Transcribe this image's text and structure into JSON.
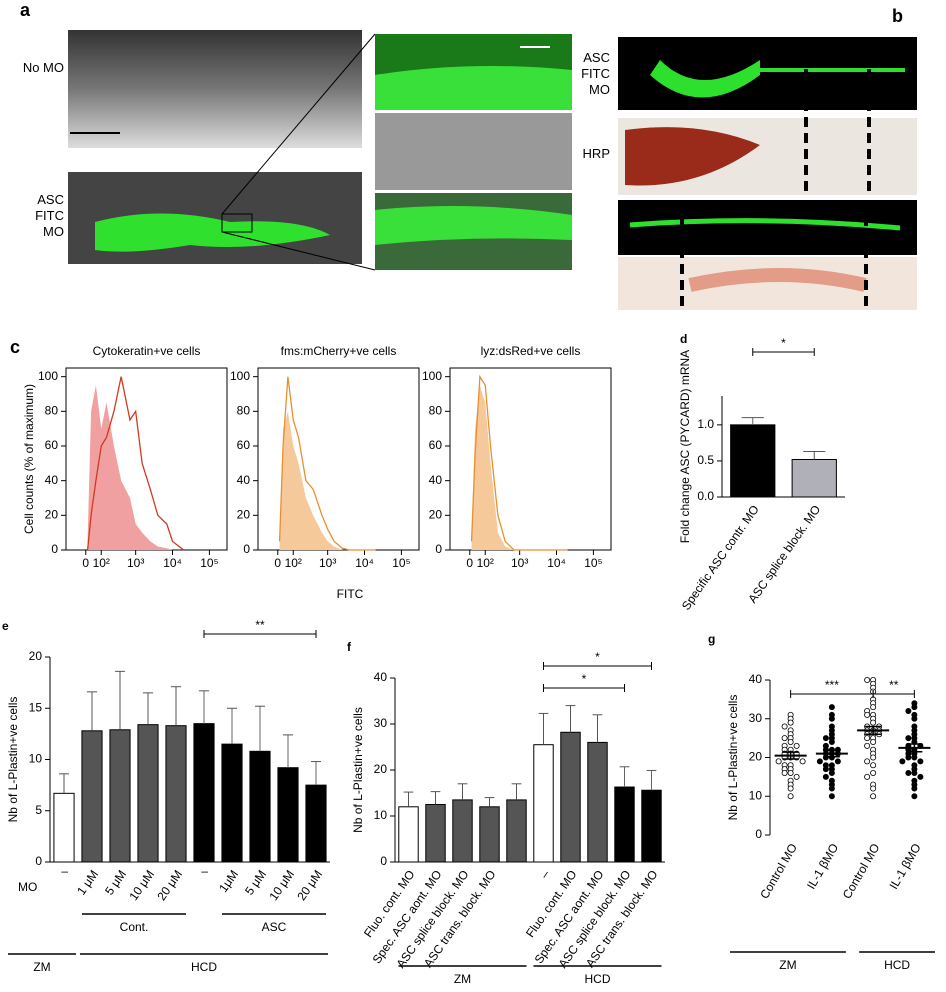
{
  "panels": {
    "a": {
      "letter": "a",
      "labels": [
        "No MO",
        "ASC FITC MO"
      ]
    },
    "b": {
      "letter": "b",
      "labels": [
        "ASC FITC MO",
        "HRP"
      ]
    }
  },
  "chart_data": [
    {
      "type": "histogram-overlay",
      "panel": "c",
      "title": "Cytokeratin+ve cells",
      "ylabel": "Cell counts (% of maximum)",
      "ylim": [
        0,
        105
      ],
      "yticks": [
        0,
        20,
        40,
        60,
        80,
        100
      ],
      "xlim": [
        -140,
        300000
      ],
      "xticks": [
        0,
        {
          "value": 100,
          "label": "10²"
        },
        {
          "value": 1000,
          "label": "10³"
        },
        {
          "value": 10000,
          "label": "10⁴"
        },
        {
          "value": 100000,
          "label": "10⁵"
        }
      ],
      "x": [
        10,
        30,
        60,
        100,
        150,
        250,
        400,
        700,
        1000,
        1500,
        2500,
        4000,
        7000,
        10000,
        20000
      ],
      "series": [
        {
          "color": "#f0a0a0",
          "style": "filled",
          "values": [
            5,
            80,
            95,
            70,
            85,
            60,
            40,
            30,
            15,
            10,
            5,
            2,
            1,
            0,
            0
          ]
        },
        {
          "color": "#d03a20",
          "style": "line",
          "values": [
            0,
            20,
            40,
            60,
            65,
            80,
            100,
            75,
            80,
            50,
            35,
            20,
            15,
            5,
            0
          ]
        }
      ]
    },
    {
      "type": "histogram-overlay",
      "title": "fms:mCherry+ve cells",
      "ylim": [
        0,
        105
      ],
      "yticks": [
        0,
        20,
        40,
        60,
        80,
        100
      ],
      "xlim": [
        -140,
        300000
      ],
      "xlabel": "FITC",
      "xticks": [
        0,
        {
          "value": 100,
          "label": "10²"
        },
        {
          "value": 1000,
          "label": "10³"
        },
        {
          "value": 10000,
          "label": "10⁴"
        },
        {
          "value": 100000,
          "label": "10⁵"
        }
      ],
      "x": [
        10,
        30,
        60,
        100,
        150,
        250,
        400,
        700,
        1000,
        1500,
        2500,
        4000,
        7000,
        10000,
        20000
      ],
      "series": [
        {
          "color": "#f5c99a",
          "style": "filled",
          "values": [
            10,
            70,
            80,
            60,
            50,
            30,
            20,
            10,
            5,
            2,
            0,
            0,
            0,
            0,
            0
          ]
        },
        {
          "color": "#e89030",
          "style": "line",
          "values": [
            5,
            60,
            100,
            75,
            65,
            40,
            35,
            20,
            12,
            5,
            1,
            0,
            0,
            0,
            0
          ]
        }
      ]
    },
    {
      "type": "histogram-overlay",
      "title": "lyz:dsRed+ve cells",
      "ylim": [
        0,
        105
      ],
      "yticks": [
        0,
        20,
        40,
        60,
        80,
        100
      ],
      "xlim": [
        -140,
        300000
      ],
      "xticks": [
        0,
        {
          "value": 100,
          "label": "10²"
        },
        {
          "value": 1000,
          "label": "10³"
        },
        {
          "value": 10000,
          "label": "10⁴"
        },
        {
          "value": 100000,
          "label": "10⁵"
        }
      ],
      "x": [
        10,
        30,
        60,
        100,
        150,
        250,
        400,
        700,
        1000,
        1500,
        2500,
        4000,
        7000,
        10000,
        20000
      ],
      "series": [
        {
          "color": "#f5c99a",
          "style": "filled",
          "values": [
            10,
            70,
            95,
            85,
            50,
            10,
            2,
            0,
            0,
            0,
            0,
            0,
            0,
            0,
            0
          ]
        },
        {
          "color": "#e89030",
          "style": "line",
          "values": [
            5,
            55,
            100,
            95,
            60,
            20,
            5,
            0,
            0,
            0,
            0,
            0,
            0,
            0,
            0
          ]
        }
      ]
    },
    {
      "type": "bar",
      "panel": "d",
      "ylabel": "Fold change ASC (PYCARD) mRNA",
      "ylim": [
        0,
        1.4
      ],
      "yticks": [
        {
          "value": 0,
          "label": "0.0"
        },
        0.5,
        {
          "value": 1,
          "label": "1.0"
        }
      ],
      "categories": [
        "Specific ASC contr. MO",
        "ASC splice block. MO"
      ],
      "values": [
        1.0,
        0.52
      ],
      "errors": [
        0.1,
        0.11
      ],
      "colors": [
        "#000000",
        "#b0b0b8"
      ],
      "annotations": [
        "*"
      ]
    },
    {
      "type": "bar",
      "panel": "e",
      "ylabel": "Nb of L-Plastin+ve cells",
      "ylim": [
        0,
        20
      ],
      "yticks": [
        0,
        5,
        10,
        15,
        20
      ],
      "categories": [
        "–",
        "1 μM",
        "5 μM",
        "10 μM",
        "20 μM",
        "–",
        "1μM",
        "5 μM",
        "10 μM",
        "20 μM"
      ],
      "values": [
        6.7,
        12.8,
        12.9,
        13.4,
        13.3,
        13.5,
        11.5,
        10.8,
        9.2,
        7.5
      ],
      "errors": [
        1.9,
        3.8,
        5.7,
        3.1,
        3.8,
        3.2,
        3.5,
        4.4,
        3.2,
        2.3
      ],
      "colors": [
        "#ffffff",
        "#555555",
        "#555555",
        "#555555",
        "#555555",
        "#000000",
        "#000000",
        "#000000",
        "#000000",
        "#000000"
      ],
      "annotations": [
        "**",
        "MO",
        "Cont.",
        "ASC",
        "ZM",
        "HCD"
      ]
    },
    {
      "type": "bar",
      "panel": "f",
      "ylabel": "Nb of L-Plastin+ve cells",
      "ylim": [
        0,
        40
      ],
      "yticks": [
        0,
        10,
        20,
        30,
        40
      ],
      "categories": [
        "Fluo. cont. MO",
        "Spec. ASC aont. MO",
        "ASC splice block. MO",
        "ASC trans. block. MO",
        null,
        "–",
        "Fluo. cont. MO",
        "Spec. ASC aont. MO",
        "ASC splice block. MO",
        "ASC trans. block. MO"
      ],
      "values": [
        12,
        12.5,
        13.5,
        12,
        13.5,
        25.5,
        28.2,
        26,
        16.3,
        15.6
      ],
      "errors": [
        3.2,
        2.8,
        3.5,
        2,
        3.5,
        6.8,
        5.8,
        6,
        4.4,
        4.3
      ],
      "colors": [
        "#ffffff",
        "#555555",
        "#555555",
        "#555555",
        "#555555",
        "#ffffff",
        "#555555",
        "#555555",
        "#000000",
        "#000000"
      ],
      "annotations": [
        "*",
        "*",
        "ZM",
        "HCD"
      ]
    },
    {
      "type": "dot-plot",
      "panel": "g",
      "ylabel": "Nb of L-Plastin+ve cells",
      "ylim": [
        0,
        40
      ],
      "yticks": [
        0,
        10,
        20,
        30,
        40
      ],
      "categories": [
        "Control MO",
        "IL-1 βMO",
        "Control MO",
        "IL-1 βMO"
      ],
      "filled": [
        false,
        true,
        false,
        true
      ],
      "values": [
        [
          31,
          30,
          29,
          28,
          27,
          26,
          25,
          25,
          24,
          23,
          23,
          22,
          22,
          21,
          21,
          21,
          20,
          20,
          20,
          19,
          19,
          18,
          18,
          17,
          17,
          16,
          16,
          15,
          14,
          13,
          12,
          10
        ],
        [
          33,
          31,
          30,
          28,
          27,
          26,
          25,
          25,
          24,
          23,
          22,
          22,
          22,
          21,
          21,
          21,
          20,
          20,
          19,
          19,
          18,
          18,
          17,
          17,
          16,
          15,
          14,
          13,
          12,
          10
        ],
        [
          40,
          40,
          39,
          38,
          37,
          35,
          34,
          33,
          32,
          31,
          31,
          30,
          29,
          28,
          28,
          27,
          27,
          27,
          26,
          26,
          26,
          25,
          25,
          24,
          23,
          22,
          21,
          20,
          19,
          18,
          16,
          15,
          13,
          12,
          10
        ],
        [
          34,
          33,
          32,
          31,
          30,
          28,
          27,
          26,
          25,
          25,
          24,
          23,
          23,
          22,
          22,
          21,
          21,
          20,
          20,
          19,
          19,
          18,
          17,
          16,
          16,
          15,
          14,
          13,
          12,
          10
        ]
      ],
      "means": [
        20.5,
        21,
        27,
        22.5
      ],
      "errors": [
        0.9,
        0.8,
        1.0,
        1.0
      ],
      "annotations": [
        "***",
        "**",
        "ZM",
        "HCD"
      ]
    }
  ]
}
